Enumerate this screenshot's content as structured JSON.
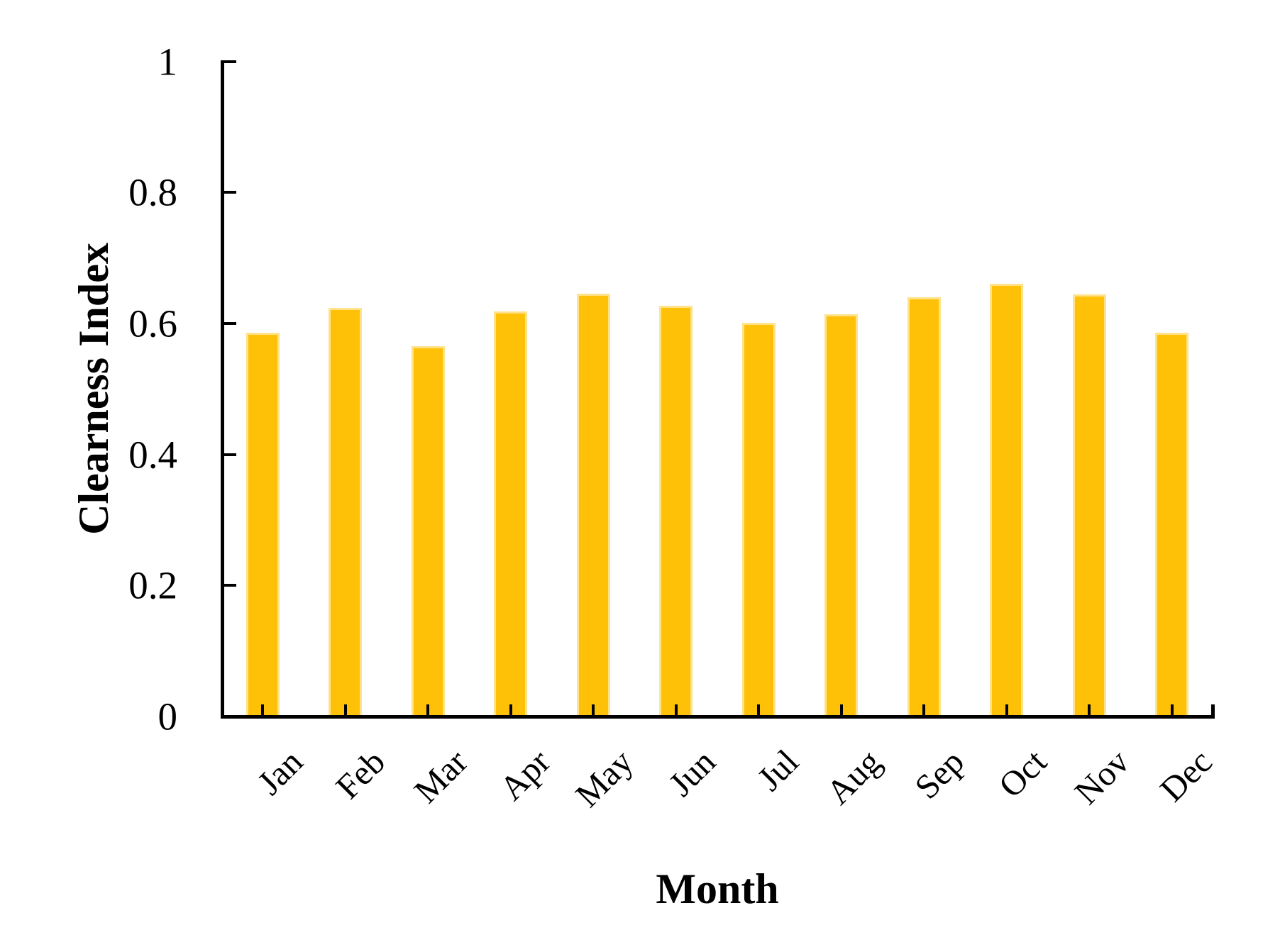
{
  "chart_data": {
    "type": "bar",
    "title": "",
    "xlabel": "Month",
    "ylabel": "Clearness Index",
    "categories": [
      "Jan",
      "Feb",
      "Mar",
      "Apr",
      "May",
      "Jun",
      "Jul",
      "Aug",
      "Sep",
      "Oct",
      "Nov",
      "Dec"
    ],
    "values": [
      0.586,
      0.624,
      0.565,
      0.618,
      0.646,
      0.627,
      0.601,
      0.614,
      0.64,
      0.661,
      0.644,
      0.586
    ],
    "ylim": [
      0,
      1
    ],
    "yticks": [
      0,
      0.2,
      0.4,
      0.6,
      0.8,
      1
    ],
    "ytick_labels": [
      "0",
      "0.2",
      "0.4",
      "0.6",
      "0.8",
      "1"
    ],
    "xtick_rotation_deg": 45,
    "grid": false,
    "legend": false,
    "bar_color": "#FFC107",
    "bar_border_color": "#FFE28A",
    "axis_color": "#000000",
    "text_color": "#000000",
    "background_color": "#FFFFFF"
  }
}
